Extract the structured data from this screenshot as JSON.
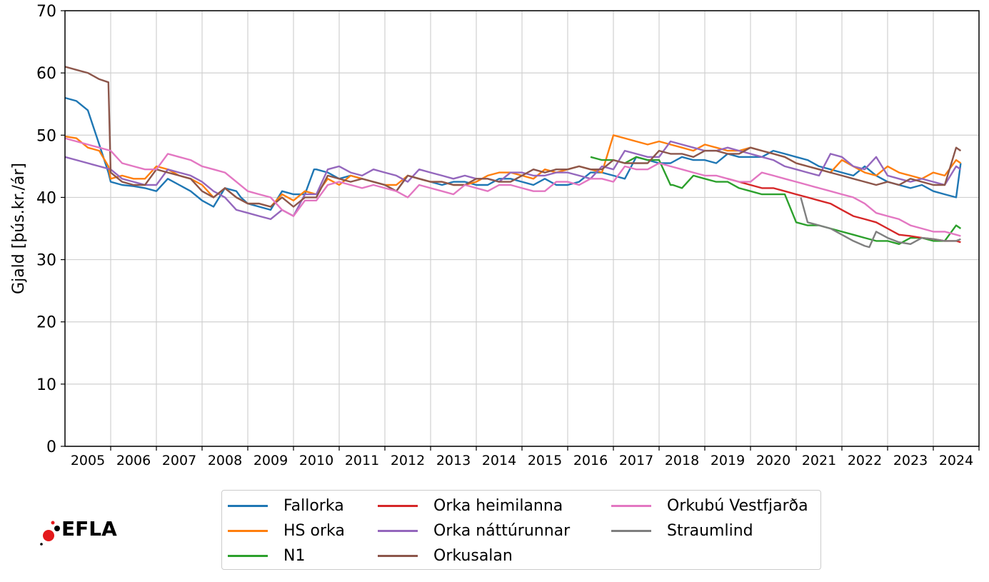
{
  "chart_data": {
    "type": "line",
    "title": "",
    "xlabel": "",
    "ylabel": "Gjald [þús.kr./ár]",
    "ylim": [
      0,
      70
    ],
    "xlim": [
      2004.5,
      2024.5
    ],
    "yticks": [
      0,
      10,
      20,
      30,
      40,
      50,
      60,
      70
    ],
    "xticks": [
      "2005",
      "2006",
      "2007",
      "2008",
      "2009",
      "2010",
      "2011",
      "2012",
      "2013",
      "2014",
      "2015",
      "2016",
      "2017",
      "2018",
      "2019",
      "2020",
      "2021",
      "2022",
      "2023",
      "2024"
    ],
    "grid": true,
    "legend_position": "bottom",
    "series": [
      {
        "name": "Fallorka",
        "color": "#1f77b4",
        "x": [
          2004.5,
          2004.75,
          2005.0,
          2005.25,
          2005.45,
          2005.5,
          2005.75,
          2006.0,
          2006.25,
          2006.5,
          2006.75,
          2007.0,
          2007.25,
          2007.5,
          2007.75,
          2008.0,
          2008.25,
          2008.35,
          2008.5,
          2008.75,
          2009.0,
          2009.25,
          2009.5,
          2009.75,
          2009.95,
          2010.0,
          2010.25,
          2010.5,
          2010.75,
          2011.0,
          2011.25,
          2011.5,
          2011.75,
          2012.0,
          2012.25,
          2012.5,
          2012.75,
          2013.0,
          2013.25,
          2013.5,
          2013.75,
          2014.0,
          2014.25,
          2014.5,
          2014.75,
          2015.0,
          2015.25,
          2015.5,
          2015.75,
          2016.0,
          2016.25,
          2016.5,
          2016.75,
          2017.0,
          2017.25,
          2017.5,
          2017.75,
          2018.0,
          2018.25,
          2018.5,
          2018.75,
          2019.0,
          2019.25,
          2019.5,
          2019.75,
          2020.0,
          2020.25,
          2020.5,
          2020.75,
          2021.0,
          2021.25,
          2021.5,
          2021.75,
          2022.0,
          2022.25,
          2022.5,
          2022.75,
          2023.0,
          2023.25,
          2023.5,
          2023.75,
          2024.0,
          2024.1
        ],
        "y": [
          56,
          55.5,
          54,
          48.5,
          44,
          42.5,
          42,
          41.8,
          41.5,
          41,
          43,
          42,
          41,
          39.5,
          38.5,
          41.5,
          41,
          40,
          39,
          38.5,
          38,
          41,
          40.5,
          40.5,
          44.5,
          44.5,
          44,
          43,
          43.5,
          43,
          42.5,
          42,
          41,
          43.5,
          43,
          42.5,
          42,
          42.5,
          42.5,
          42,
          42,
          43,
          43,
          42.5,
          42,
          43,
          42,
          42,
          42.5,
          44,
          44,
          43.5,
          43,
          46.5,
          46,
          45.5,
          45.5,
          46.5,
          46,
          46,
          45.5,
          47,
          46.5,
          46.5,
          46.5,
          47.5,
          47,
          46.5,
          46,
          45,
          44.5,
          44,
          43.5,
          45,
          43.5,
          42.5,
          42,
          41.5,
          42,
          41,
          40.5,
          40,
          45.5
        ]
      },
      {
        "name": "HS orka",
        "color": "#ff7f0e",
        "x": [
          2004.5,
          2004.75,
          2005.0,
          2005.25,
          2005.45,
          2005.5,
          2005.75,
          2006.0,
          2006.25,
          2006.5,
          2006.75,
          2007.0,
          2007.25,
          2007.5,
          2007.75,
          2008.0,
          2008.25,
          2008.5,
          2008.75,
          2009.0,
          2009.25,
          2009.5,
          2009.75,
          2010.0,
          2010.25,
          2010.5,
          2010.75,
          2011.0,
          2011.25,
          2011.5,
          2011.75,
          2012.0,
          2012.25,
          2012.5,
          2012.75,
          2013.0,
          2013.25,
          2013.5,
          2013.75,
          2014.0,
          2014.25,
          2014.5,
          2014.75,
          2015.0,
          2015.25,
          2015.5,
          2015.75,
          2016.0,
          2016.25,
          2016.5,
          2016.75,
          2017.0,
          2017.25,
          2017.5,
          2017.75,
          2018.0,
          2018.25,
          2018.5,
          2018.75,
          2019.0,
          2019.25,
          2019.5,
          2019.75,
          2020.0,
          2020.25,
          2020.5,
          2020.75,
          2021.0,
          2021.25,
          2021.5,
          2021.75,
          2022.0,
          2022.25,
          2022.5,
          2022.75,
          2023.0,
          2023.25,
          2023.5,
          2023.75,
          2024.0,
          2024.1
        ],
        "y": [
          49.8,
          49.5,
          48,
          47.5,
          45,
          43,
          43.5,
          43,
          43,
          45,
          44.5,
          43.5,
          43,
          42,
          40,
          41.5,
          40,
          39,
          39,
          38.5,
          40.5,
          39.5,
          41,
          40.5,
          43,
          42,
          43.5,
          43,
          42.5,
          42,
          42,
          43.5,
          43,
          42.5,
          42.5,
          42,
          42,
          42.5,
          43.5,
          44,
          44,
          43.5,
          43,
          44.5,
          44,
          44.5,
          45,
          44.5,
          44,
          50,
          49.5,
          49,
          48.5,
          49,
          48.5,
          48,
          47.5,
          48.5,
          48,
          47.5,
          47.5,
          48,
          47.5,
          47,
          46.5,
          45.5,
          45,
          44.5,
          44,
          46,
          45,
          44,
          43.5,
          45,
          44,
          43.5,
          43,
          44,
          43.5,
          46,
          45.5
        ]
      },
      {
        "name": "N1",
        "color": "#2ca02c",
        "x": [
          2016.0,
          2016.25,
          2016.5,
          2016.75,
          2017.0,
          2017.25,
          2017.5,
          2017.75,
          2017.8,
          2018.0,
          2018.25,
          2018.5,
          2018.75,
          2019.0,
          2019.25,
          2019.5,
          2019.75,
          2020.0,
          2020.25,
          2020.5,
          2020.75,
          2021.0,
          2021.25,
          2021.5,
          2021.75,
          2022.0,
          2022.25,
          2022.5,
          2022.75,
          2023.0,
          2023.25,
          2023.5,
          2023.75,
          2024.0,
          2024.1
        ],
        "y": [
          46.5,
          46,
          46,
          45.5,
          46.5,
          46,
          46,
          42,
          42,
          41.5,
          43.5,
          43,
          42.5,
          42.5,
          41.5,
          41,
          40.5,
          40.5,
          40.5,
          36,
          35.5,
          35.5,
          35,
          34.5,
          34,
          33.5,
          33,
          33,
          32.5,
          33.5,
          33.5,
          33,
          33,
          35.5,
          35
        ]
      },
      {
        "name": "Orka heimilanna",
        "color": "#d62728",
        "x": [
          2019.0,
          2019.25,
          2019.5,
          2019.75,
          2020.0,
          2020.25,
          2020.5,
          2020.75,
          2021.0,
          2021.25,
          2021.5,
          2021.75,
          2022.0,
          2022.25,
          2022.5,
          2022.75,
          2023.0,
          2023.25,
          2023.5,
          2023.75,
          2024.0,
          2024.1
        ],
        "y": [
          43,
          42.5,
          42,
          41.5,
          41.5,
          41,
          40.5,
          40,
          39.5,
          39,
          38,
          37,
          36.5,
          36,
          35,
          34,
          33.8,
          33.5,
          33.3,
          33,
          33,
          32.8
        ]
      },
      {
        "name": "Orka náttúrunnar",
        "color": "#9467bd",
        "x": [
          2004.5,
          2004.75,
          2005.0,
          2005.25,
          2005.5,
          2005.75,
          2006.0,
          2006.25,
          2006.5,
          2006.75,
          2007.0,
          2007.25,
          2007.5,
          2007.75,
          2008.0,
          2008.25,
          2008.5,
          2008.75,
          2009.0,
          2009.25,
          2009.5,
          2009.75,
          2010.0,
          2010.25,
          2010.5,
          2010.75,
          2011.0,
          2011.25,
          2011.5,
          2011.75,
          2012.0,
          2012.25,
          2012.5,
          2012.75,
          2013.0,
          2013.25,
          2013.5,
          2013.75,
          2014.0,
          2014.25,
          2014.5,
          2014.75,
          2015.0,
          2015.25,
          2015.5,
          2015.75,
          2016.0,
          2016.25,
          2016.5,
          2016.75,
          2017.0,
          2017.25,
          2017.5,
          2017.75,
          2018.0,
          2018.25,
          2018.5,
          2018.75,
          2019.0,
          2019.25,
          2019.5,
          2019.75,
          2020.0,
          2020.25,
          2020.5,
          2020.75,
          2021.0,
          2021.25,
          2021.5,
          2021.75,
          2022.0,
          2022.25,
          2022.5,
          2022.75,
          2023.0,
          2023.25,
          2023.5,
          2023.75,
          2024.0,
          2024.1
        ],
        "y": [
          46.5,
          46,
          45.5,
          45,
          44.5,
          43,
          42.5,
          42,
          42,
          44.5,
          44,
          43.5,
          42.5,
          41,
          40,
          38,
          37.5,
          37,
          36.5,
          38,
          37,
          40.5,
          40.5,
          44.5,
          45,
          44,
          43.5,
          44.5,
          44,
          43.5,
          42.5,
          44.5,
          44,
          43.5,
          43,
          43.5,
          43,
          43,
          42.5,
          44,
          44,
          43.5,
          43.5,
          44,
          44,
          43.5,
          43,
          45,
          44.5,
          47.5,
          47,
          46.5,
          46.5,
          49,
          48.5,
          48,
          47.5,
          47.5,
          48,
          47.5,
          47,
          46.5,
          46,
          45,
          44.5,
          44,
          43.5,
          47,
          46.5,
          45,
          44.5,
          46.5,
          43.5,
          43,
          42.5,
          43,
          42.5,
          42,
          45,
          44.5
        ]
      },
      {
        "name": "Orkusalan",
        "color": "#8c564b",
        "x": [
          2004.5,
          2004.75,
          2005.0,
          2005.25,
          2005.45,
          2005.5,
          2005.75,
          2006.0,
          2006.25,
          2006.5,
          2006.75,
          2007.0,
          2007.25,
          2007.5,
          2007.75,
          2008.0,
          2008.25,
          2008.5,
          2008.75,
          2009.0,
          2009.25,
          2009.5,
          2009.75,
          2010.0,
          2010.25,
          2010.5,
          2010.75,
          2011.0,
          2011.25,
          2011.5,
          2011.75,
          2012.0,
          2012.25,
          2012.5,
          2012.75,
          2013.0,
          2013.25,
          2013.5,
          2013.75,
          2014.0,
          2014.25,
          2014.5,
          2014.75,
          2015.0,
          2015.25,
          2015.5,
          2015.75,
          2016.0,
          2016.25,
          2016.5,
          2016.75,
          2017.0,
          2017.25,
          2017.5,
          2017.75,
          2018.0,
          2018.25,
          2018.5,
          2018.75,
          2019.0,
          2019.25,
          2019.5,
          2019.75,
          2020.0,
          2020.25,
          2020.5,
          2020.75,
          2021.0,
          2021.25,
          2021.5,
          2021.75,
          2022.0,
          2022.25,
          2022.5,
          2022.75,
          2023.0,
          2023.25,
          2023.5,
          2023.75,
          2024.0,
          2024.1
        ],
        "y": [
          61,
          60.5,
          60,
          59,
          58.5,
          44,
          42.5,
          42,
          42,
          44.5,
          44,
          43.5,
          43,
          41,
          40,
          41.5,
          40,
          39,
          39,
          38.5,
          40,
          38.5,
          40,
          40,
          43.5,
          43,
          42.5,
          43,
          42.5,
          42,
          41,
          43.5,
          43,
          42.5,
          42.5,
          42,
          42,
          43,
          43,
          42.5,
          42.5,
          43.5,
          44.5,
          44,
          44.5,
          44.5,
          45,
          44.5,
          44.5,
          46,
          45.5,
          45.5,
          45.5,
          47.5,
          47,
          47,
          46.5,
          47.5,
          47.5,
          47,
          47,
          48,
          47.5,
          47,
          46.5,
          45.5,
          45,
          44.5,
          44,
          43.5,
          43,
          42.5,
          42,
          42.5,
          42,
          43,
          42.5,
          42,
          42,
          48,
          47.5
        ]
      },
      {
        "name": "Orkubú Vestfjarða",
        "color": "#e377c2",
        "x": [
          2004.5,
          2004.75,
          2005.0,
          2005.25,
          2005.5,
          2005.75,
          2006.0,
          2006.25,
          2006.5,
          2006.75,
          2007.0,
          2007.25,
          2007.5,
          2007.75,
          2008.0,
          2008.25,
          2008.5,
          2008.75,
          2009.0,
          2009.25,
          2009.5,
          2009.75,
          2010.0,
          2010.25,
          2010.5,
          2010.75,
          2011.0,
          2011.25,
          2011.5,
          2011.75,
          2012.0,
          2012.25,
          2012.5,
          2012.75,
          2013.0,
          2013.25,
          2013.5,
          2013.75,
          2014.0,
          2014.25,
          2014.5,
          2014.75,
          2015.0,
          2015.25,
          2015.5,
          2015.75,
          2016.0,
          2016.25,
          2016.5,
          2016.75,
          2017.0,
          2017.25,
          2017.5,
          2017.75,
          2018.0,
          2018.25,
          2018.5,
          2018.75,
          2019.0,
          2019.25,
          2019.5,
          2019.75,
          2020.0,
          2020.25,
          2020.5,
          2020.75,
          2021.0,
          2021.25,
          2021.5,
          2021.75,
          2022.0,
          2022.25,
          2022.5,
          2022.75,
          2023.0,
          2023.25,
          2023.5,
          2023.75,
          2024.0,
          2024.1
        ],
        "y": [
          49.5,
          49,
          48.5,
          48,
          47.5,
          45.5,
          45,
          44.5,
          44.5,
          47,
          46.5,
          46,
          45,
          44.5,
          44,
          42.5,
          41,
          40.5,
          40,
          38,
          37,
          39.5,
          39.5,
          42,
          42.5,
          42,
          41.5,
          42,
          41.5,
          41,
          40,
          42,
          41.5,
          41,
          40.5,
          42,
          41.5,
          41,
          42,
          42,
          41.5,
          41,
          41,
          42.5,
          42.5,
          42,
          43,
          43,
          42.5,
          45,
          44.5,
          44.5,
          45.5,
          45,
          44.5,
          44,
          43.5,
          43.5,
          43,
          42.5,
          42.5,
          44,
          43.5,
          43,
          42.5,
          42,
          41.5,
          41,
          40.5,
          40,
          39,
          37.5,
          37,
          36.5,
          35.5,
          35,
          34.5,
          34.5,
          34,
          33.8
        ]
      },
      {
        "name": "Straumlind",
        "color": "#7f7f7f",
        "x": [
          2020.6,
          2020.75,
          2021.0,
          2021.25,
          2021.5,
          2021.75,
          2022.0,
          2022.1,
          2022.25,
          2022.5,
          2022.75,
          2023.0,
          2023.25,
          2023.5,
          2023.75,
          2024.0,
          2024.1
        ],
        "y": [
          40,
          36,
          35.5,
          35,
          34,
          33,
          32.2,
          32,
          34.5,
          33.5,
          32.8,
          32.5,
          33.5,
          33.3,
          33,
          33,
          33.3
        ]
      }
    ]
  },
  "logo": {
    "text": "EFLA"
  }
}
